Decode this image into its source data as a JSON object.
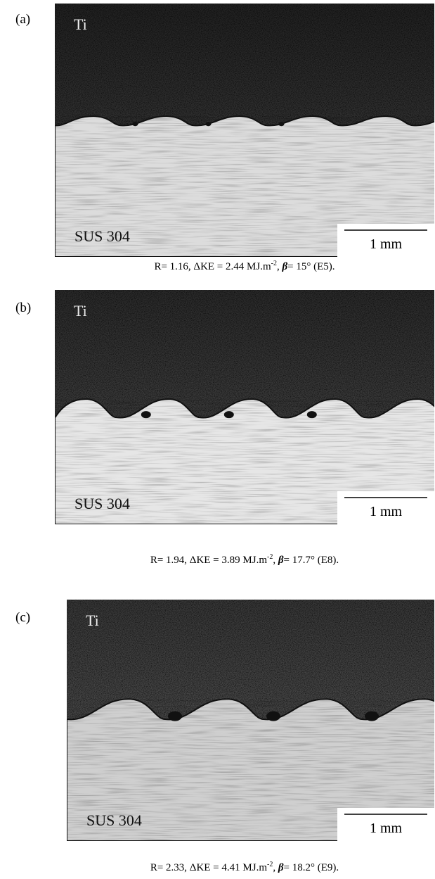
{
  "panels": [
    {
      "label": "(a)",
      "top_label": "Ti",
      "bottom_label": "SUS 304",
      "scale_label": "1 mm",
      "caption": {
        "prefix": "R= 1.16, ΔKE = 2.44 MJ.m",
        "sup": "-2",
        "mid": ", ",
        "symbol": "β",
        "suffix": "= 15° (E5)."
      }
    },
    {
      "label": "(b)",
      "top_label": "Ti",
      "bottom_label": "SUS 304",
      "scale_label": "1 mm",
      "caption": {
        "prefix": "R= 1.94, ΔKE = 3.89 MJ.m",
        "sup": "-2",
        "mid": ", ",
        "symbol": "β",
        "suffix": "= 17.7° (E8)."
      }
    },
    {
      "label": "(c)",
      "top_label": "Ti",
      "bottom_label": "SUS 304",
      "scale_label": "1 mm",
      "caption": {
        "prefix": "R= 2.33, ΔKE = 4.41 MJ.m",
        "sup": "-2",
        "mid": ", ",
        "symbol": "β",
        "suffix": "= 18.2° (E9)."
      }
    }
  ]
}
